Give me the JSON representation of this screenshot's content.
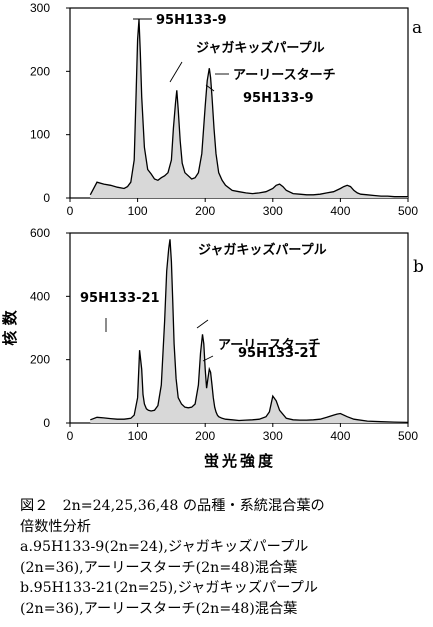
{
  "chart_data": [
    {
      "type": "area",
      "panel_label": "a",
      "xlim": [
        0,
        500
      ],
      "ylim": [
        0,
        300
      ],
      "x_ticks": [
        0,
        100,
        200,
        300,
        400,
        500
      ],
      "y_ticks": [
        0,
        100,
        200,
        300
      ],
      "x": [
        30,
        40,
        50,
        60,
        70,
        80,
        85,
        90,
        95,
        98,
        100,
        102,
        104,
        106,
        110,
        115,
        120,
        125,
        130,
        135,
        140,
        145,
        150,
        153,
        156,
        158,
        160,
        163,
        166,
        170,
        175,
        180,
        185,
        190,
        195,
        200,
        203,
        206,
        208,
        210,
        213,
        216,
        220,
        225,
        230,
        240,
        250,
        260,
        270,
        280,
        290,
        300,
        305,
        310,
        315,
        320,
        330,
        340,
        350,
        360,
        370,
        380,
        390,
        400,
        405,
        410,
        415,
        420,
        425,
        430,
        440,
        450,
        460,
        470,
        480,
        490,
        500
      ],
      "values": [
        5,
        25,
        22,
        20,
        17,
        15,
        18,
        25,
        60,
        170,
        250,
        282,
        230,
        160,
        80,
        45,
        38,
        30,
        28,
        32,
        35,
        40,
        60,
        110,
        150,
        170,
        140,
        90,
        55,
        40,
        35,
        30,
        32,
        40,
        70,
        145,
        185,
        205,
        190,
        160,
        110,
        70,
        40,
        28,
        20,
        12,
        10,
        8,
        7,
        8,
        10,
        15,
        20,
        22,
        18,
        12,
        7,
        6,
        5,
        5,
        6,
        8,
        10,
        15,
        18,
        20,
        18,
        12,
        8,
        6,
        5,
        4,
        3,
        3,
        2,
        2,
        2
      ],
      "annotations": [
        {
          "text": "95H133-9"
        },
        {
          "text": "ジャガキッズパープル"
        },
        {
          "text": "アーリースターチ"
        },
        {
          "text": "95H133-9"
        }
      ]
    },
    {
      "type": "area",
      "panel_label": "b",
      "xlim": [
        0,
        500
      ],
      "ylim": [
        0,
        600
      ],
      "x_ticks": [
        0,
        100,
        200,
        300,
        400,
        500
      ],
      "y_ticks": [
        0,
        200,
        400,
        600
      ],
      "ylabel": "核 数",
      "xlabel": "蛍光強度",
      "x": [
        30,
        40,
        50,
        60,
        70,
        80,
        90,
        95,
        100,
        103,
        106,
        108,
        110,
        113,
        116,
        120,
        125,
        130,
        135,
        140,
        143,
        146,
        148,
        150,
        152,
        154,
        157,
        160,
        165,
        170,
        175,
        180,
        185,
        190,
        193,
        196,
        198,
        200,
        202,
        204,
        206,
        208,
        210,
        212,
        214,
        216,
        218,
        220,
        225,
        230,
        240,
        250,
        260,
        270,
        280,
        290,
        295,
        300,
        305,
        310,
        320,
        330,
        340,
        350,
        360,
        370,
        380,
        390,
        395,
        400,
        410,
        420,
        440,
        460,
        480,
        500
      ],
      "values": [
        10,
        18,
        16,
        14,
        12,
        12,
        15,
        25,
        80,
        230,
        170,
        90,
        60,
        45,
        40,
        38,
        40,
        55,
        120,
        320,
        480,
        550,
        580,
        510,
        380,
        250,
        140,
        80,
        60,
        50,
        48,
        50,
        60,
        120,
        220,
        280,
        250,
        170,
        110,
        140,
        170,
        160,
        120,
        80,
        50,
        35,
        25,
        20,
        15,
        12,
        10,
        8,
        9,
        10,
        12,
        20,
        35,
        85,
        70,
        40,
        15,
        10,
        9,
        9,
        10,
        12,
        18,
        25,
        28,
        30,
        20,
        12,
        6,
        4,
        3,
        2
      ],
      "annotations": [
        {
          "text": "ジャガキッズパープル"
        },
        {
          "text": "95H133-21"
        },
        {
          "text": "アーリースターチ"
        },
        {
          "text": "95H133-21"
        }
      ]
    }
  ],
  "caption": {
    "lines": [
      "図２　2n=24,25,36,48 の品種・系統混合葉の",
      "倍数性分析",
      "a.95H133-9(2n=24),ジャガキッズパープル",
      "(2n=36),アーリースターチ(2n=48)混合葉",
      "b.95H133-21(2n=25),ジャガキッズパープル",
      "(2n=36),アーリースターチ(2n=48)混合葉"
    ]
  }
}
